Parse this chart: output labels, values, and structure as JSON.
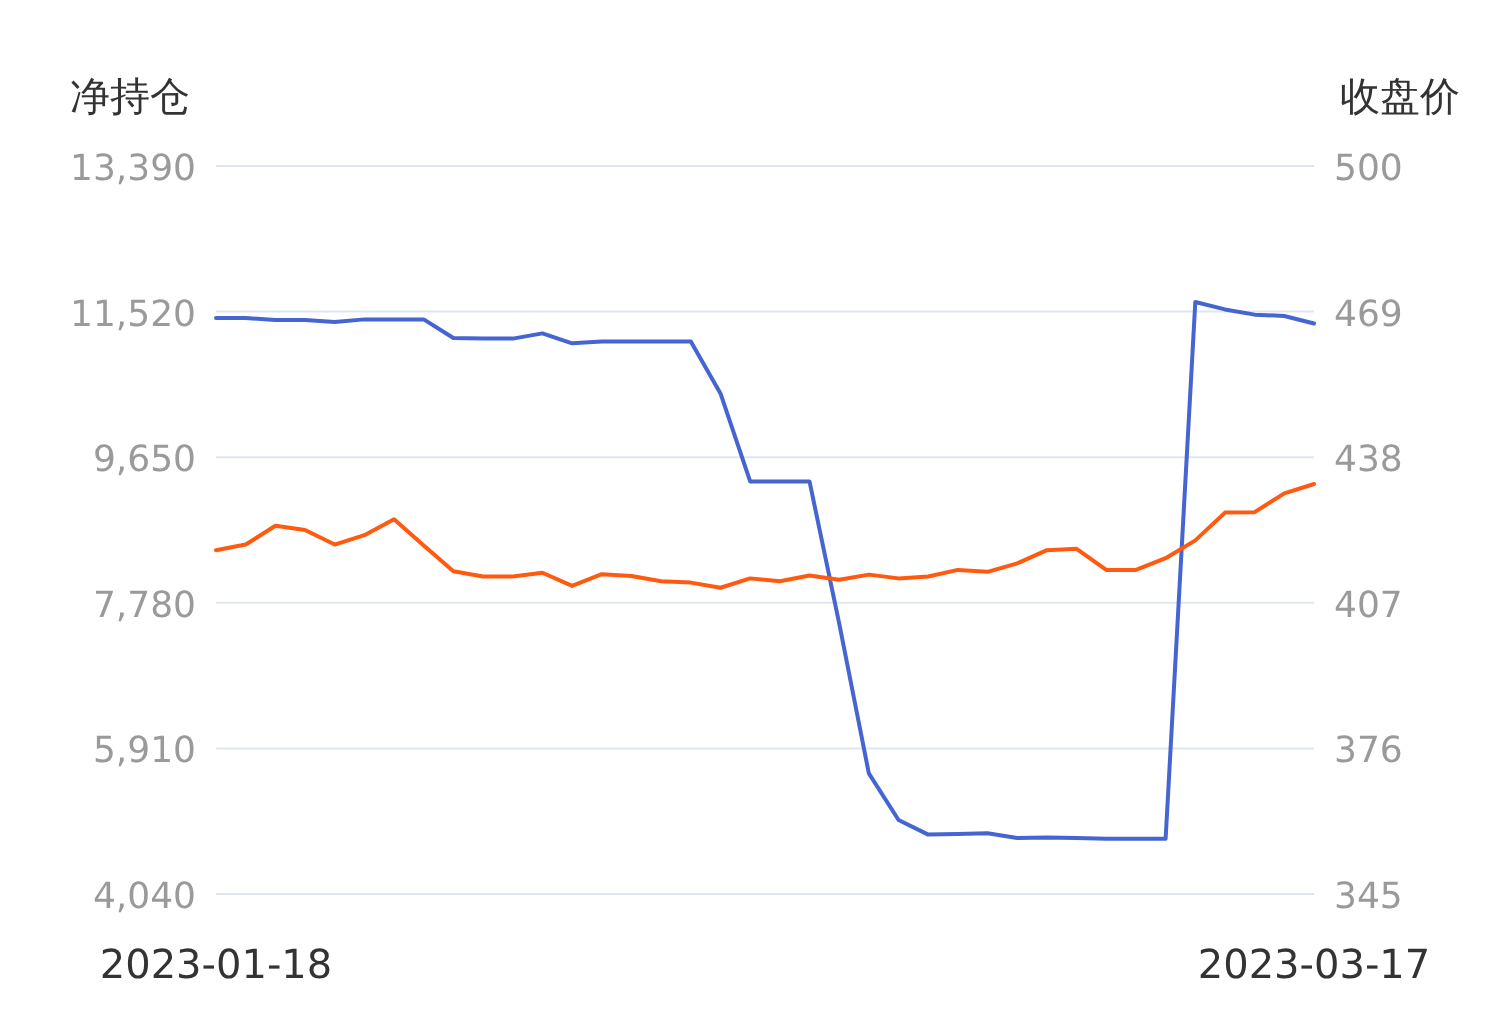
{
  "chart_data": {
    "type": "line",
    "ylabel": "净持仓",
    "y2label": "收盘价",
    "categories": [
      "2023-01-18",
      null,
      null,
      null,
      null,
      null,
      null,
      null,
      null,
      null,
      null,
      null,
      null,
      null,
      null,
      null,
      null,
      null,
      null,
      null,
      null,
      null,
      null,
      null,
      null,
      null,
      null,
      null,
      null,
      null,
      null,
      null,
      null,
      null,
      null,
      null,
      null,
      "2023-03-17"
    ],
    "series": [
      {
        "color": "#4565d0",
        "values": [
          11438,
          11438,
          11412,
          11412,
          11386,
          11420,
          11420,
          11420,
          11181,
          11173,
          11173,
          11240,
          11112,
          11137,
          11137,
          11137,
          11137,
          10469,
          9339,
          9339,
          9339,
          7515,
          5589,
          4990,
          4803,
          4811,
          4820,
          4759,
          4767,
          4759,
          4751,
          4751,
          4751,
          11643,
          11548,
          11481,
          11463,
          11368
        ]
      },
      {
        "color": "#ff5a0f",
        "axis": "y2",
        "values": [
          418.2,
          419.4,
          423.4,
          422.5,
          419.4,
          421.4,
          424.8,
          419.2,
          413.7,
          412.6,
          412.6,
          413.4,
          410.6,
          413.1,
          412.7,
          411.6,
          411.3,
          410.2,
          412.2,
          411.6,
          412.8,
          411.9,
          413.0,
          412.2,
          412.6,
          414.0,
          413.6,
          415.4,
          418.2,
          418.5,
          414.0,
          414.0,
          416.5,
          420.3,
          426.2,
          426.3,
          430.3,
          432.3
        ]
      }
    ],
    "ylim": [
      4040,
      13390
    ],
    "yticks": [
      {
        "value": 4040,
        "label": "4,040"
      },
      {
        "value": 5910,
        "label": "5,910"
      },
      {
        "value": 7780,
        "label": "7,780"
      },
      {
        "value": 9650,
        "label": "9,650"
      },
      {
        "value": 11520,
        "label": "11,520"
      },
      {
        "value": 13390,
        "label": "13,390"
      }
    ],
    "y2lim": [
      345,
      500
    ],
    "y2ticks": [
      345,
      376,
      407,
      438,
      469,
      500
    ],
    "grid": "y"
  }
}
